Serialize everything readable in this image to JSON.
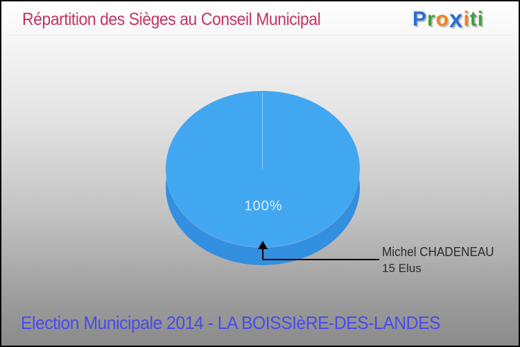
{
  "header": {
    "title": "Répartition des Sièges au Conseil Municipal",
    "title_color": "#c23467"
  },
  "logo": {
    "name": "Proxiti",
    "letters": [
      {
        "ch": "P",
        "color": "#2e6fce"
      },
      {
        "ch": "r",
        "color": "#3f9e3f"
      },
      {
        "ch": "o",
        "color": "#f0821e"
      },
      {
        "ch": "x",
        "color": "#2e6fce"
      },
      {
        "ch": "i",
        "color": "#f0821e"
      },
      {
        "ch": "t",
        "color": "#3f9e3f"
      },
      {
        "ch": "i",
        "color": "#3f9e3f"
      }
    ]
  },
  "chart_data": {
    "type": "pie",
    "style": "3d",
    "title": "Répartition des Sièges au Conseil Municipal",
    "total_seats": 15,
    "slices": [
      {
        "label": "Michel CHADENEAU",
        "seats": 15,
        "percent": 100,
        "color": "#42a7f1"
      }
    ],
    "inner_label": "100%",
    "inner_label_color": "#d8ecfb",
    "side_color": "#338fdf",
    "callout": {
      "name": "Michel CHADENEAU",
      "detail": "15 Elus"
    },
    "legend_position": "callout-right"
  },
  "footer": {
    "title": "Election Municipale 2014 - LA BOISSIèRE-DES-LANDES",
    "title_color": "#4a4aee"
  }
}
